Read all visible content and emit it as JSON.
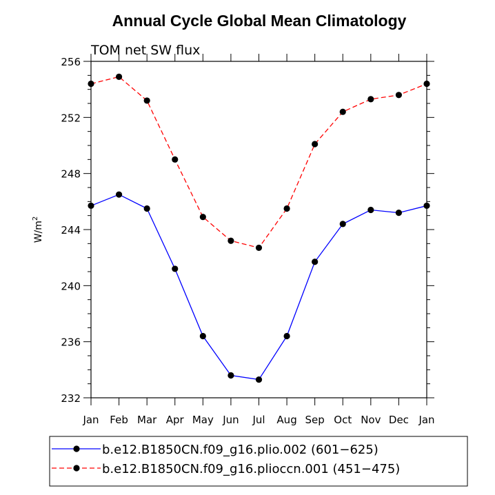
{
  "chart_data": {
    "type": "line",
    "title": "Annual Cycle Global Mean Climatology",
    "subtitle": "TOM net SW flux",
    "ylabel": "W/m",
    "ylabel_sup": "2",
    "xlabel": "",
    "categories": [
      "Jan",
      "Feb",
      "Mar",
      "Apr",
      "May",
      "Jun",
      "Jul",
      "Aug",
      "Sep",
      "Oct",
      "Nov",
      "Dec",
      "Jan"
    ],
    "ylim": [
      232,
      256
    ],
    "yticks": [
      232,
      236,
      240,
      244,
      248,
      252,
      256
    ],
    "series": [
      {
        "name": "b.e12.B1850CN.f09_g16.plio.002 (601−625)",
        "color": "#0000ff",
        "dash": "solid",
        "values": [
          245.7,
          246.5,
          245.5,
          241.2,
          236.4,
          233.6,
          233.3,
          236.4,
          241.7,
          244.4,
          245.4,
          245.2,
          245.7
        ]
      },
      {
        "name": "b.e12.B1850CN.f09_g16.plioccn.001 (451−475)",
        "color": "#ff0000",
        "dash": "dashed",
        "values": [
          254.4,
          254.9,
          253.2,
          249.0,
          244.9,
          243.2,
          242.7,
          245.5,
          250.1,
          252.4,
          253.3,
          253.6,
          254.4
        ]
      }
    ],
    "legend_position": "bottom"
  }
}
